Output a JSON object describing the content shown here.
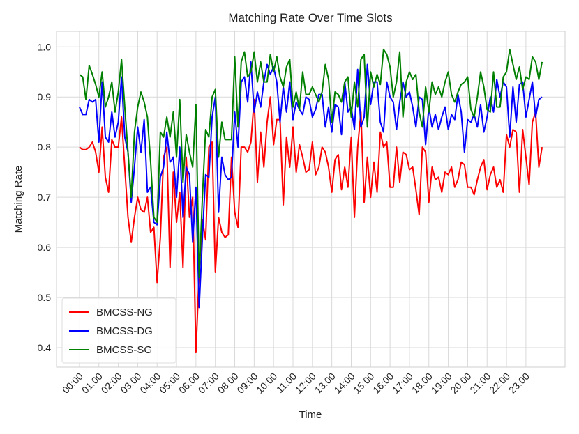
{
  "chart_data": {
    "type": "line",
    "title": "Matching Rate Over Time Slots",
    "x_label": "Time",
    "y_label": "Matching Rate",
    "categories": [
      "00:00",
      null,
      null,
      null,
      null,
      null,
      "01:00",
      null,
      null,
      null,
      null,
      null,
      "02:00",
      null,
      null,
      null,
      null,
      null,
      "03:00",
      null,
      null,
      null,
      null,
      null,
      "04:00",
      null,
      null,
      null,
      null,
      null,
      "05:00",
      null,
      null,
      null,
      null,
      null,
      "06:00",
      null,
      null,
      null,
      null,
      null,
      "07:00",
      null,
      null,
      null,
      null,
      null,
      "08:00",
      null,
      null,
      null,
      null,
      null,
      "09:00",
      null,
      null,
      null,
      null,
      null,
      "10:00",
      null,
      null,
      null,
      null,
      null,
      "11:00",
      null,
      null,
      null,
      null,
      null,
      "12:00",
      null,
      null,
      null,
      null,
      null,
      "13:00",
      null,
      null,
      null,
      null,
      null,
      "14:00",
      null,
      null,
      null,
      null,
      null,
      "15:00",
      null,
      null,
      null,
      null,
      null,
      "16:00",
      null,
      null,
      null,
      null,
      null,
      "17:00",
      null,
      null,
      null,
      null,
      null,
      "18:00",
      null,
      null,
      null,
      null,
      null,
      "19:00",
      null,
      null,
      null,
      null,
      null,
      "20:00",
      null,
      null,
      null,
      null,
      null,
      "21:00",
      null,
      null,
      null,
      null,
      null,
      "22:00",
      null,
      null,
      null,
      null,
      null,
      "23:00",
      null,
      null,
      null,
      null,
      null
    ],
    "series": [
      {
        "name": "BMCSS-NG",
        "color": "#ff0000",
        "values": [
          0.8,
          0.795,
          0.795,
          0.8,
          0.81,
          0.79,
          0.75,
          0.84,
          0.74,
          0.71,
          0.815,
          0.8,
          0.8,
          0.86,
          0.76,
          0.66,
          0.61,
          0.66,
          0.7,
          0.675,
          0.67,
          0.7,
          0.63,
          0.64,
          0.53,
          0.62,
          0.78,
          0.8,
          0.56,
          0.75,
          0.65,
          0.71,
          0.56,
          0.78,
          0.66,
          0.7,
          0.39,
          0.55,
          0.655,
          0.615,
          0.8,
          0.81,
          0.55,
          0.66,
          0.63,
          0.62,
          0.625,
          0.78,
          0.67,
          0.64,
          0.8,
          0.8,
          0.79,
          0.81,
          0.895,
          0.73,
          0.83,
          0.76,
          0.85,
          0.9,
          0.805,
          0.855,
          0.855,
          0.685,
          0.82,
          0.76,
          0.84,
          0.75,
          0.805,
          0.78,
          0.75,
          0.755,
          0.81,
          0.745,
          0.76,
          0.8,
          0.79,
          0.76,
          0.71,
          0.775,
          0.785,
          0.715,
          0.76,
          0.72,
          0.82,
          0.66,
          0.8,
          0.87,
          0.69,
          0.78,
          0.7,
          0.77,
          0.71,
          0.83,
          0.8,
          0.81,
          0.72,
          0.72,
          0.8,
          0.73,
          0.79,
          0.785,
          0.755,
          0.76,
          0.715,
          0.665,
          0.8,
          0.79,
          0.69,
          0.76,
          0.735,
          0.74,
          0.71,
          0.75,
          0.745,
          0.76,
          0.72,
          0.735,
          0.77,
          0.765,
          0.72,
          0.72,
          0.705,
          0.735,
          0.76,
          0.775,
          0.715,
          0.745,
          0.76,
          0.72,
          0.735,
          0.71,
          0.825,
          0.8,
          0.835,
          0.83,
          0.71,
          0.835,
          0.78,
          0.725,
          0.85,
          0.87,
          0.76,
          0.8
        ]
      },
      {
        "name": "BMCSS-DG",
        "color": "#0000ff",
        "values": [
          0.88,
          0.865,
          0.865,
          0.895,
          0.89,
          0.895,
          0.81,
          0.93,
          0.82,
          0.81,
          0.87,
          0.82,
          0.85,
          0.94,
          0.82,
          0.79,
          0.69,
          0.76,
          0.84,
          0.79,
          0.855,
          0.71,
          0.72,
          0.65,
          0.645,
          0.74,
          0.76,
          0.83,
          0.77,
          0.78,
          0.7,
          0.8,
          0.66,
          0.76,
          0.745,
          0.61,
          0.72,
          0.48,
          0.62,
          0.745,
          0.74,
          0.86,
          0.9,
          0.67,
          0.78,
          0.745,
          0.735,
          0.74,
          0.87,
          0.8,
          0.93,
          0.94,
          0.89,
          0.97,
          0.87,
          0.91,
          0.88,
          0.93,
          0.965,
          0.945,
          0.96,
          0.93,
          0.85,
          0.92,
          0.87,
          0.93,
          0.855,
          0.89,
          0.875,
          0.865,
          0.9,
          0.895,
          0.86,
          0.875,
          0.905,
          0.905,
          0.84,
          0.88,
          0.83,
          0.885,
          0.88,
          0.825,
          0.93,
          0.87,
          0.88,
          0.835,
          0.955,
          0.84,
          0.86,
          0.965,
          0.885,
          0.93,
          0.93,
          0.85,
          0.83,
          0.93,
          0.9,
          0.89,
          0.835,
          0.89,
          0.93,
          0.9,
          0.91,
          0.88,
          0.84,
          0.9,
          0.895,
          0.805,
          0.88,
          0.84,
          0.865,
          0.835,
          0.86,
          0.88,
          0.835,
          0.865,
          0.855,
          0.905,
          0.87,
          0.79,
          0.855,
          0.85,
          0.865,
          0.84,
          0.885,
          0.83,
          0.86,
          0.9,
          0.87,
          0.935,
          0.9,
          0.93,
          0.92,
          0.82,
          0.92,
          0.85,
          0.925,
          0.93,
          0.86,
          0.895,
          0.93,
          0.86,
          0.895,
          0.9
        ]
      },
      {
        "name": "BMCSS-SG",
        "color": "#008000",
        "values": [
          0.945,
          0.94,
          0.895,
          0.963,
          0.945,
          0.925,
          0.9,
          0.95,
          0.88,
          0.9,
          0.93,
          0.87,
          0.91,
          0.975,
          0.88,
          0.79,
          0.7,
          0.83,
          0.88,
          0.91,
          0.89,
          0.86,
          0.77,
          0.66,
          0.65,
          0.83,
          0.82,
          0.86,
          0.82,
          0.87,
          0.78,
          0.895,
          0.73,
          0.825,
          0.79,
          0.76,
          0.885,
          0.54,
          0.7,
          0.835,
          0.82,
          0.9,
          0.915,
          0.78,
          0.85,
          0.815,
          0.815,
          0.815,
          0.98,
          0.84,
          0.97,
          0.99,
          0.94,
          0.95,
          0.99,
          0.93,
          0.97,
          0.93,
          0.93,
          0.985,
          0.95,
          0.98,
          0.94,
          0.92,
          0.96,
          0.975,
          0.88,
          0.91,
          0.875,
          0.95,
          0.905,
          0.905,
          0.92,
          0.905,
          0.89,
          0.91,
          0.965,
          0.935,
          0.85,
          0.91,
          0.905,
          0.89,
          0.93,
          0.94,
          0.86,
          0.93,
          0.88,
          0.975,
          0.985,
          0.84,
          0.95,
          0.92,
          0.945,
          0.925,
          0.995,
          0.985,
          0.96,
          0.9,
          0.93,
          0.99,
          0.86,
          0.93,
          0.95,
          0.935,
          0.945,
          0.87,
          0.84,
          0.92,
          0.87,
          0.93,
          0.905,
          0.92,
          0.9,
          0.93,
          0.95,
          0.905,
          0.89,
          0.91,
          0.925,
          0.93,
          0.94,
          0.875,
          0.86,
          0.9,
          0.95,
          0.92,
          0.875,
          0.87,
          0.95,
          0.88,
          0.88,
          0.94,
          0.95,
          0.995,
          0.965,
          0.935,
          0.96,
          0.915,
          0.94,
          0.935,
          0.98,
          0.97,
          0.935,
          0.97
        ]
      }
    ],
    "ylim": [
      0.361,
      1.031
    ],
    "yticks": [
      0.4,
      0.5,
      0.6,
      0.7,
      0.8,
      0.9,
      {
        "value": 1,
        "label": "1.0"
      }
    ],
    "grid": true,
    "legend": "lower left"
  }
}
